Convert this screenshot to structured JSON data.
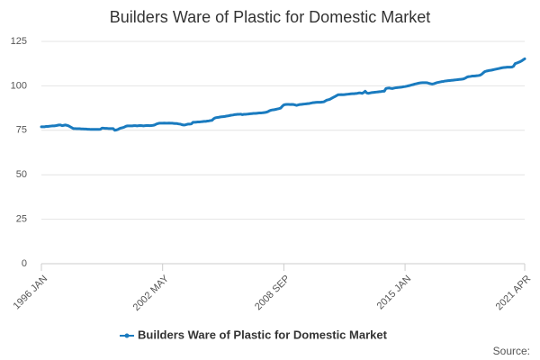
{
  "chart_data": {
    "type": "line",
    "title": "Builders Ware of Plastic for Domestic Market",
    "source": "Source:",
    "categories": [
      "1996 JAN",
      null,
      null,
      null,
      null,
      null,
      null,
      null,
      null,
      null,
      null,
      null,
      null,
      null,
      null,
      null,
      null,
      null,
      null,
      null,
      null,
      null,
      null,
      null,
      null,
      null,
      null,
      null,
      null,
      null,
      null,
      null,
      null,
      null,
      null,
      null,
      null,
      null,
      null,
      null,
      null,
      null,
      null,
      null,
      null,
      null,
      null,
      null,
      null,
      null,
      null,
      null,
      null,
      null,
      null,
      null,
      null,
      null,
      null,
      null,
      null,
      null,
      null,
      null,
      null,
      null,
      null,
      null,
      null,
      null,
      null,
      null,
      null,
      null,
      null,
      null,
      "2002 MAY",
      null,
      null,
      null,
      null,
      null,
      null,
      null,
      null,
      null,
      null,
      null,
      null,
      null,
      null,
      null,
      null,
      null,
      null,
      null,
      null,
      null,
      null,
      null,
      null,
      null,
      null,
      null,
      null,
      null,
      null,
      null,
      null,
      null,
      null,
      null,
      null,
      null,
      null,
      null,
      null,
      null,
      null,
      null,
      null,
      null,
      null,
      null,
      null,
      null,
      null,
      null,
      null,
      null,
      null,
      null,
      null,
      null,
      null,
      null,
      null,
      null,
      null,
      null,
      null,
      null,
      null,
      null,
      null,
      null,
      null,
      null,
      null,
      null,
      null,
      null,
      "2008 SEP",
      null,
      null,
      null,
      null,
      null,
      null,
      null,
      null,
      null,
      null,
      null,
      null,
      null,
      null,
      null,
      null,
      null,
      null,
      null,
      null,
      null,
      null,
      null,
      null,
      null,
      null,
      null,
      null,
      null,
      null,
      null,
      null,
      null,
      null,
      null,
      null,
      null,
      null,
      null,
      null,
      null,
      null,
      null,
      null,
      null,
      null,
      null,
      null,
      null,
      null,
      null,
      null,
      null,
      null,
      null,
      null,
      null,
      null,
      null,
      null,
      null,
      null,
      null,
      null,
      null,
      null,
      null,
      null,
      null,
      null,
      null,
      null,
      null,
      null,
      null,
      "2015 JAN",
      null,
      null,
      null,
      null,
      null,
      null,
      null,
      null,
      null,
      null,
      null,
      null,
      null,
      null,
      null,
      null,
      null,
      null,
      null,
      null,
      null,
      null,
      null,
      null,
      null,
      null,
      null,
      null,
      null,
      null,
      null,
      null,
      null,
      null,
      null,
      null,
      null,
      null,
      null,
      null,
      null,
      null,
      null,
      null,
      null,
      null,
      null,
      null,
      null,
      null,
      null,
      null,
      null,
      null,
      null,
      null,
      null,
      null,
      null,
      null,
      null,
      null,
      null,
      null,
      null,
      null,
      null,
      null,
      null,
      null,
      null,
      null,
      null,
      null,
      "2021 APR"
    ],
    "series": [
      {
        "name": "Builders Ware of Plastic for Domestic Market",
        "color": "#1a7bbf",
        "values": [
          77,
          77,
          77,
          77.2,
          77.2,
          77.3,
          77.4,
          77.5,
          77.5,
          77.6,
          77.8,
          78,
          78,
          77.6,
          77.8,
          78,
          77.8,
          77.5,
          77,
          76.5,
          76,
          76,
          75.9,
          75.9,
          75.9,
          75.8,
          75.8,
          75.7,
          75.7,
          75.6,
          75.6,
          75.5,
          75.5,
          75.5,
          75.5,
          75.5,
          75.5,
          75.6,
          76.2,
          76.2,
          76.1,
          76.1,
          76,
          76,
          76,
          76,
          75,
          75.2,
          75.5,
          76,
          76.3,
          76.5,
          76.8,
          77.3,
          77.5,
          77.5,
          77.5,
          77.5,
          77.6,
          77.6,
          77.5,
          77.6,
          77.7,
          77.6,
          77.5,
          77.6,
          77.7,
          77.7,
          77.6,
          77.7,
          77.8,
          78,
          78.5,
          78.8,
          79,
          79,
          79,
          79.1,
          79,
          79,
          79.1,
          79,
          79,
          78.9,
          78.8,
          78.8,
          78.6,
          78.5,
          78.2,
          78,
          78,
          78.3,
          78.5,
          78.5,
          78.6,
          79.5,
          79.5,
          79.6,
          79.7,
          79.7,
          79.8,
          79.9,
          80,
          80,
          80.2,
          80.3,
          80.5,
          80.6,
          81.5,
          82,
          82.2,
          82.3,
          82.5,
          82.6,
          82.7,
          82.8,
          83,
          83.1,
          83.3,
          83.5,
          83.6,
          83.8,
          83.9,
          84,
          84,
          84.1,
          83.8,
          84,
          84,
          84.1,
          84.2,
          84.3,
          84.4,
          84.5,
          84.5,
          84.6,
          84.7,
          84.8,
          84.8,
          84.9,
          85,
          85.2,
          85.5,
          86,
          86.3,
          86.5,
          86.6,
          86.8,
          87,
          87.2,
          87.5,
          88.5,
          89.3,
          89.5,
          89.6,
          89.6,
          89.5,
          89.6,
          89.5,
          89.3,
          89,
          89.3,
          89.5,
          89.6,
          89.7,
          89.8,
          89.9,
          90,
          90.1,
          90.3,
          90.5,
          90.6,
          90.7,
          90.8,
          90.8,
          90.8,
          90.9,
          91,
          91.5,
          92,
          92.2,
          92.5,
          93,
          93.5,
          94,
          94.5,
          95,
          95,
          95.1,
          95,
          95.1,
          95.2,
          95.3,
          95.4,
          95.5,
          95.6,
          95.6,
          95.7,
          95.8,
          96,
          96,
          95.8,
          96.2,
          97,
          96,
          95.8,
          96,
          96.2,
          96.3,
          96.4,
          96.5,
          96.6,
          96.7,
          96.8,
          97,
          97,
          98.5,
          98.7,
          98.8,
          98.6,
          98.5,
          98.7,
          98.9,
          99,
          99.1,
          99.2,
          99.3,
          99.5,
          99.6,
          99.8,
          100,
          100.2,
          100.5,
          100.7,
          101,
          101.2,
          101.4,
          101.6,
          101.7,
          101.8,
          101.8,
          101.8,
          101.7,
          101.4,
          101.2,
          101,
          101.2,
          101.5,
          101.8,
          102,
          102.2,
          102.4,
          102.5,
          102.7,
          102.8,
          102.9,
          103,
          103.1,
          103.2,
          103.3,
          103.4,
          103.5,
          103.6,
          103.7,
          103.8,
          104,
          104.5,
          105,
          105.2,
          105.3,
          105.5,
          105.5,
          105.6,
          105.7,
          105.8,
          106,
          106.5,
          107.3,
          108,
          108.3,
          108.5,
          108.7,
          108.8,
          109,
          109.2,
          109.4,
          109.6,
          109.8,
          110,
          110.2,
          110.3,
          110.4,
          110.5,
          110.5,
          110.5,
          110.6,
          111,
          112.5,
          112.8,
          113.2,
          113.5,
          114,
          114.6,
          115.2
        ]
      }
    ],
    "ylim": [
      0,
      125
    ],
    "yticks": [
      0,
      25,
      50,
      75,
      100,
      125
    ],
    "grid": true
  }
}
